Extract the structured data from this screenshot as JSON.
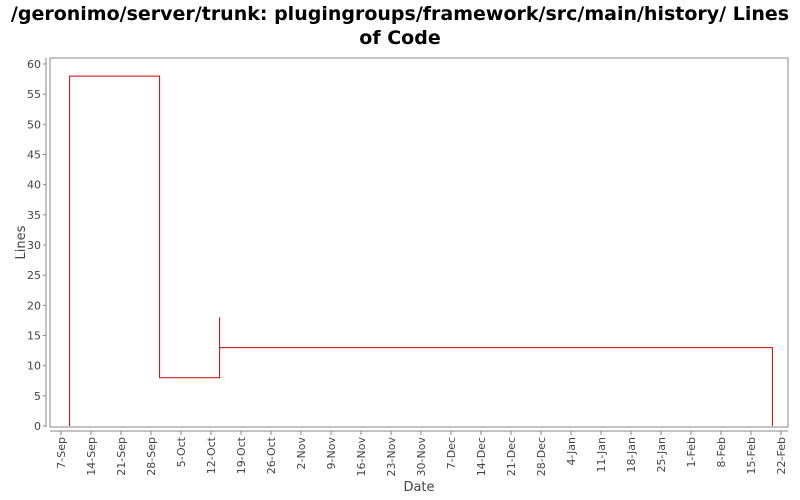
{
  "chart_data": {
    "type": "line",
    "step": true,
    "title": "/geronimo/server/trunk: plugingroups/framework/src/main/history/ Lines of Code",
    "xlabel": "Date",
    "ylabel": "Lines",
    "ylim": [
      0,
      60
    ],
    "yticks": [
      0,
      5,
      10,
      15,
      20,
      25,
      30,
      35,
      40,
      45,
      50,
      55,
      60
    ],
    "xlim": [
      "2008-09-07",
      "2009-02-22"
    ],
    "xticks": [
      {
        "date": "2008-09-07",
        "label": "7-Sep"
      },
      {
        "date": "2008-09-14",
        "label": "14-Sep"
      },
      {
        "date": "2008-09-21",
        "label": "21-Sep"
      },
      {
        "date": "2008-09-28",
        "label": "28-Sep"
      },
      {
        "date": "2008-10-05",
        "label": "5-Oct"
      },
      {
        "date": "2008-10-12",
        "label": "12-Oct"
      },
      {
        "date": "2008-10-19",
        "label": "19-Oct"
      },
      {
        "date": "2008-10-26",
        "label": "26-Oct"
      },
      {
        "date": "2008-11-02",
        "label": "2-Nov"
      },
      {
        "date": "2008-11-09",
        "label": "9-Nov"
      },
      {
        "date": "2008-11-16",
        "label": "16-Nov"
      },
      {
        "date": "2008-11-23",
        "label": "23-Nov"
      },
      {
        "date": "2008-11-30",
        "label": "30-Nov"
      },
      {
        "date": "2008-12-07",
        "label": "7-Dec"
      },
      {
        "date": "2008-12-14",
        "label": "14-Dec"
      },
      {
        "date": "2008-12-21",
        "label": "21-Dec"
      },
      {
        "date": "2008-12-28",
        "label": "28-Dec"
      },
      {
        "date": "2009-01-04",
        "label": "4-Jan"
      },
      {
        "date": "2009-01-11",
        "label": "11-Jan"
      },
      {
        "date": "2009-01-18",
        "label": "18-Jan"
      },
      {
        "date": "2009-01-25",
        "label": "25-Jan"
      },
      {
        "date": "2009-02-01",
        "label": "1-Feb"
      },
      {
        "date": "2009-02-08",
        "label": "8-Feb"
      },
      {
        "date": "2009-02-15",
        "label": "15-Feb"
      },
      {
        "date": "2009-02-22",
        "label": "22-Feb"
      }
    ],
    "grid": false,
    "series": [
      {
        "color": "#cc0000",
        "points": [
          {
            "x": "2008-09-09",
            "y": 0
          },
          {
            "x": "2008-09-09",
            "y": 58
          },
          {
            "x": "2008-09-30",
            "y": 58
          },
          {
            "x": "2008-09-30",
            "y": 8
          },
          {
            "x": "2008-10-14",
            "y": 8
          },
          {
            "x": "2008-10-14",
            "y": 18
          },
          {
            "x": "2008-10-14",
            "y": 13
          },
          {
            "x": "2009-02-20",
            "y": 13
          },
          {
            "x": "2009-02-20",
            "y": 0
          }
        ]
      }
    ]
  }
}
